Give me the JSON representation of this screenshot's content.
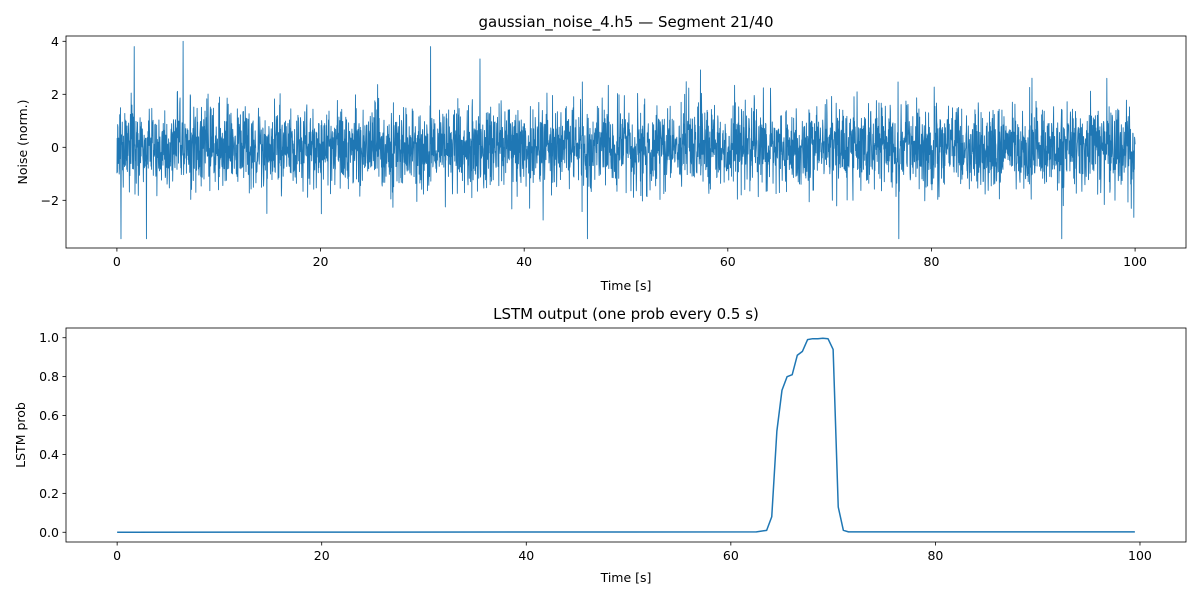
{
  "chart_data": [
    {
      "type": "line",
      "title": "gaussian_noise_4.h5 — Segment 21/40",
      "xlabel": "Time [s]",
      "ylabel": "Noise (norm.)",
      "xlim": [
        -5,
        105
      ],
      "ylim": [
        -3.8,
        4.2
      ],
      "xticks": [
        0,
        20,
        40,
        60,
        80,
        100
      ],
      "xtick_labels": [
        "0",
        "20",
        "40",
        "60",
        "80",
        "100"
      ],
      "yticks": [
        -2,
        0,
        2,
        4
      ],
      "ytick_labels": [
        "−2",
        "0",
        "2",
        "4"
      ],
      "grid": false,
      "color": "#1f77b4",
      "series": [
        {
          "x_range": [
            0,
            100
          ],
          "distribution": "gaussian",
          "mean": 0,
          "std": 0.8,
          "num_points": 4000,
          "peaks": [
            {
              "x": 6.5,
              "y": 4.0
            },
            {
              "x": 1.7,
              "y": 3.8
            },
            {
              "x": 30.8,
              "y": 3.8
            },
            {
              "x": 0.4,
              "y": -3.45
            },
            {
              "x": 2.9,
              "y": -3.45
            },
            {
              "x": 46.2,
              "y": -3.45
            },
            {
              "x": 76.8,
              "y": -3.45
            },
            {
              "x": 92.8,
              "y": -3.45
            }
          ]
        }
      ]
    },
    {
      "type": "line",
      "title": "LSTM output (one prob every 0.5 s)",
      "xlabel": "Time [s]",
      "ylabel": "LSTM prob",
      "xlim": [
        -5,
        104.5
      ],
      "ylim": [
        -0.05,
        1.05
      ],
      "xticks": [
        0,
        20,
        40,
        60,
        80,
        100
      ],
      "xtick_labels": [
        "0",
        "20",
        "40",
        "60",
        "80",
        "100"
      ],
      "yticks": [
        0,
        0.2,
        0.4,
        0.6,
        0.8,
        1.0
      ],
      "ytick_labels": [
        "0.0",
        "0.2",
        "0.4",
        "0.6",
        "0.8",
        "1.0"
      ],
      "grid": false,
      "color": "#1f77b4",
      "series": [
        {
          "x": [
            0,
            62.5,
            63.5,
            64.0,
            64.5,
            65.0,
            65.5,
            66.0,
            66.5,
            67.0,
            67.5,
            68.0,
            68.5,
            69.0,
            69.5,
            70.0,
            70.5,
            71.0,
            71.5,
            99.5
          ],
          "y": [
            0,
            0.002,
            0.01,
            0.08,
            0.52,
            0.73,
            0.8,
            0.81,
            0.91,
            0.93,
            0.99,
            0.995,
            0.995,
            0.997,
            0.995,
            0.94,
            0.13,
            0.01,
            0.002,
            0.002
          ]
        }
      ]
    }
  ]
}
